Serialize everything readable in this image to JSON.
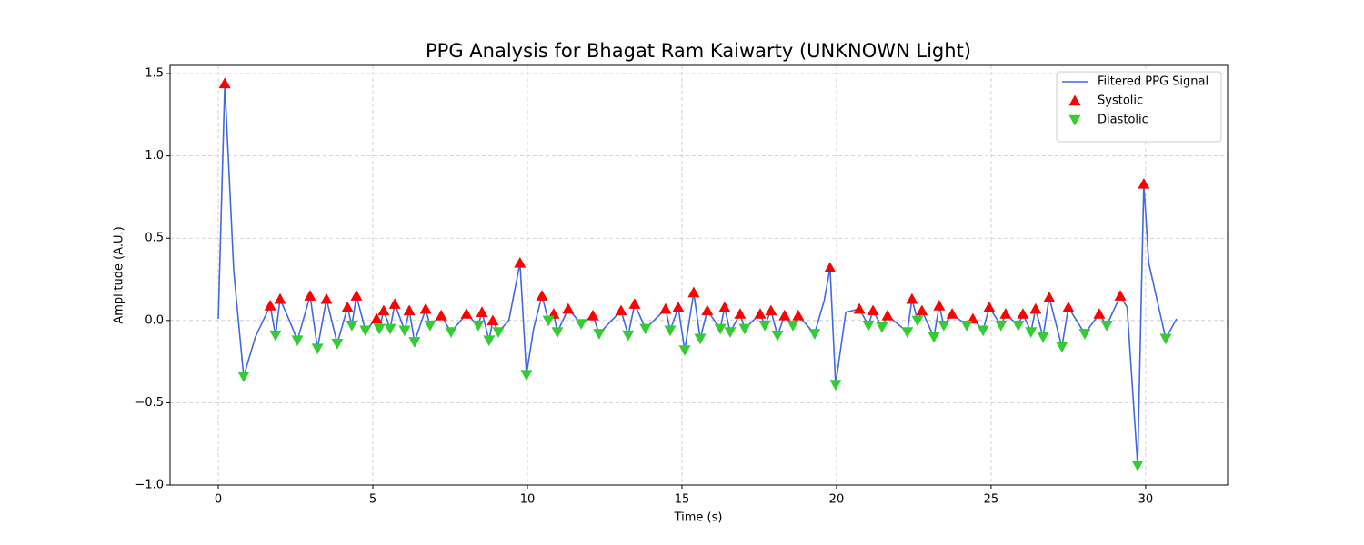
{
  "chart_data": {
    "type": "line",
    "title": "PPG Analysis for Bhagat Ram Kaiwarty (UNKNOWN Light)",
    "x_label": "Time (s)",
    "y_label": "Amplitude (A.U.)",
    "xlim": [
      -1.56,
      32.65
    ],
    "ylim": [
      -1.0,
      1.55
    ],
    "xticks": [
      0,
      5,
      10,
      15,
      20,
      25,
      30
    ],
    "yticks": [
      {
        "value": -1.0,
        "label": "−1.0"
      },
      {
        "value": -0.5,
        "label": "−0.5"
      },
      {
        "value": 0.0,
        "label": "0.0"
      },
      {
        "value": 0.5,
        "label": "0.5"
      },
      {
        "value": 1.0,
        "label": "1.0"
      },
      {
        "value": 1.5,
        "label": "1.5"
      }
    ],
    "grid": true,
    "legend_position": "upper right",
    "series": [
      {
        "name": "Filtered PPG Signal",
        "type": "line",
        "color": "#4169e1",
        "x": [
          0.0,
          0.21,
          0.5,
          0.82,
          1.2,
          1.68,
          1.85,
          2.0,
          2.3,
          2.56,
          2.97,
          3.21,
          3.5,
          3.85,
          4.18,
          4.32,
          4.47,
          4.76,
          5.12,
          5.21,
          5.35,
          5.56,
          5.71,
          6.03,
          6.18,
          6.35,
          6.71,
          6.85,
          7.21,
          7.53,
          8.03,
          8.41,
          8.53,
          8.76,
          8.88,
          9.06,
          9.4,
          9.76,
          9.97,
          10.2,
          10.47,
          10.68,
          10.85,
          10.97,
          11.32,
          11.74,
          12.12,
          12.32,
          13.03,
          13.26,
          13.47,
          13.82,
          14.47,
          14.62,
          14.88,
          15.09,
          15.38,
          15.59,
          15.82,
          16.24,
          16.38,
          16.56,
          16.88,
          17.03,
          17.53,
          17.68,
          17.88,
          18.09,
          18.32,
          18.59,
          18.76,
          19.29,
          19.6,
          19.79,
          19.97,
          20.3,
          20.74,
          21.03,
          21.18,
          21.47,
          21.65,
          22.29,
          22.44,
          22.62,
          22.76,
          23.15,
          23.32,
          23.47,
          23.74,
          24.21,
          24.41,
          24.74,
          24.94,
          25.32,
          25.47,
          25.88,
          26.03,
          26.29,
          26.44,
          26.68,
          26.88,
          27.29,
          27.5,
          28.03,
          28.5,
          28.74,
          29.18,
          29.4,
          29.74,
          29.94,
          30.1,
          30.65,
          31.0
        ],
        "values": [
          0.01,
          1.44,
          0.3,
          -0.34,
          -0.1,
          0.09,
          -0.09,
          0.13,
          0.0,
          -0.12,
          0.15,
          -0.17,
          0.13,
          -0.14,
          0.08,
          -0.03,
          0.15,
          -0.06,
          0.01,
          -0.05,
          0.06,
          -0.05,
          0.1,
          -0.06,
          0.06,
          -0.13,
          0.07,
          -0.03,
          0.03,
          -0.07,
          0.04,
          -0.03,
          0.05,
          -0.12,
          0.0,
          -0.07,
          0.0,
          0.35,
          -0.33,
          -0.05,
          0.15,
          0.0,
          0.04,
          -0.07,
          0.07,
          -0.02,
          0.03,
          -0.08,
          0.06,
          -0.09,
          0.1,
          -0.05,
          0.07,
          -0.06,
          0.08,
          -0.18,
          0.17,
          -0.11,
          0.06,
          -0.05,
          0.08,
          -0.07,
          0.04,
          -0.05,
          0.04,
          -0.03,
          0.06,
          -0.09,
          0.03,
          -0.03,
          0.03,
          -0.08,
          0.12,
          0.32,
          -0.39,
          0.05,
          0.07,
          -0.03,
          0.06,
          -0.04,
          0.03,
          -0.07,
          0.13,
          0.0,
          0.06,
          -0.1,
          0.09,
          -0.03,
          0.04,
          -0.03,
          0.01,
          -0.06,
          0.08,
          -0.03,
          0.04,
          -0.03,
          0.04,
          -0.07,
          0.07,
          -0.1,
          0.14,
          -0.16,
          0.08,
          -0.08,
          0.04,
          -0.03,
          0.15,
          0.08,
          -0.88,
          0.83,
          0.35,
          -0.11,
          0.01
        ]
      },
      {
        "name": "Systolic",
        "type": "scatter",
        "marker": "triangle-up",
        "color": "#ff0000",
        "x": [
          0.21,
          1.68,
          2.0,
          2.97,
          3.5,
          4.18,
          4.47,
          5.12,
          5.35,
          5.71,
          6.18,
          6.71,
          7.21,
          8.03,
          8.53,
          8.88,
          9.76,
          10.47,
          10.85,
          11.32,
          12.12,
          13.03,
          13.47,
          14.47,
          14.88,
          15.38,
          15.82,
          16.38,
          16.88,
          17.53,
          17.88,
          18.32,
          18.76,
          19.79,
          20.74,
          21.18,
          21.65,
          22.44,
          22.76,
          23.32,
          23.74,
          24.41,
          24.94,
          25.47,
          26.03,
          26.44,
          26.88,
          27.5,
          28.5,
          29.18,
          29.94
        ],
        "values": [
          1.44,
          0.09,
          0.13,
          0.15,
          0.13,
          0.08,
          0.15,
          0.01,
          0.06,
          0.1,
          0.06,
          0.07,
          0.03,
          0.04,
          0.05,
          0.0,
          0.35,
          0.15,
          0.04,
          0.07,
          0.03,
          0.06,
          0.1,
          0.07,
          0.08,
          0.17,
          0.06,
          0.08,
          0.04,
          0.04,
          0.06,
          0.03,
          0.03,
          0.32,
          0.07,
          0.06,
          0.03,
          0.13,
          0.06,
          0.09,
          0.04,
          0.01,
          0.08,
          0.04,
          0.04,
          0.07,
          0.14,
          0.08,
          0.04,
          0.15,
          0.83
        ]
      },
      {
        "name": "Diastolic",
        "type": "scatter",
        "marker": "triangle-down",
        "color": "#32cd32",
        "x": [
          0.82,
          1.85,
          2.56,
          3.21,
          3.85,
          4.32,
          4.76,
          5.21,
          5.56,
          6.03,
          6.35,
          6.85,
          7.53,
          8.41,
          8.76,
          9.06,
          9.97,
          10.68,
          10.97,
          11.74,
          12.32,
          13.26,
          13.82,
          14.62,
          15.09,
          15.59,
          16.24,
          16.56,
          17.03,
          17.68,
          18.09,
          18.59,
          19.29,
          19.97,
          21.03,
          21.47,
          22.29,
          22.62,
          23.15,
          23.47,
          24.21,
          24.74,
          25.32,
          25.88,
          26.29,
          26.68,
          27.29,
          28.03,
          28.74,
          29.74,
          30.65
        ],
        "values": [
          -0.34,
          -0.09,
          -0.12,
          -0.17,
          -0.14,
          -0.03,
          -0.06,
          -0.05,
          -0.05,
          -0.06,
          -0.13,
          -0.03,
          -0.07,
          -0.03,
          -0.12,
          -0.07,
          -0.33,
          0.0,
          -0.07,
          -0.02,
          -0.08,
          -0.09,
          -0.05,
          -0.06,
          -0.18,
          -0.11,
          -0.05,
          -0.07,
          -0.05,
          -0.03,
          -0.09,
          -0.03,
          -0.08,
          -0.39,
          -0.03,
          -0.04,
          -0.07,
          0.0,
          -0.1,
          -0.03,
          -0.03,
          -0.06,
          -0.03,
          -0.03,
          -0.07,
          -0.1,
          -0.16,
          -0.08,
          -0.03,
          -0.88,
          -0.11
        ]
      }
    ]
  }
}
